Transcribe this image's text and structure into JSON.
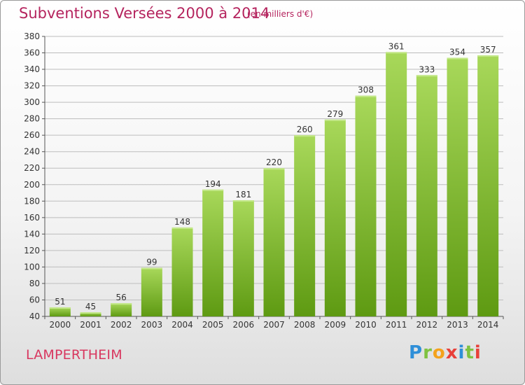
{
  "header": {
    "title": "Subventions Versées 2000 à 2014",
    "subtitle": "(en milliers d'€)"
  },
  "footer": {
    "city": "LAMPERTHEIM",
    "logo_letters": [
      "P",
      "r",
      "o",
      "x",
      "i",
      "t",
      "i"
    ]
  },
  "colors": {
    "title": "#b5245e",
    "bar_top": "#a8d85a",
    "bar_bottom": "#5e9a12",
    "grid": "#bdbdbd"
  },
  "chart_data": {
    "type": "bar",
    "categories": [
      "2000",
      "2001",
      "2002",
      "2003",
      "2004",
      "2005",
      "2006",
      "2007",
      "2008",
      "2009",
      "2010",
      "2011",
      "2012",
      "2013",
      "2014"
    ],
    "values": [
      51,
      45,
      56,
      99,
      148,
      194,
      181,
      220,
      260,
      279,
      308,
      361,
      333,
      354,
      357
    ],
    "ylim": [
      40,
      380
    ],
    "ytick_step": 20,
    "grid": true,
    "xlabel": "",
    "ylabel": ""
  }
}
